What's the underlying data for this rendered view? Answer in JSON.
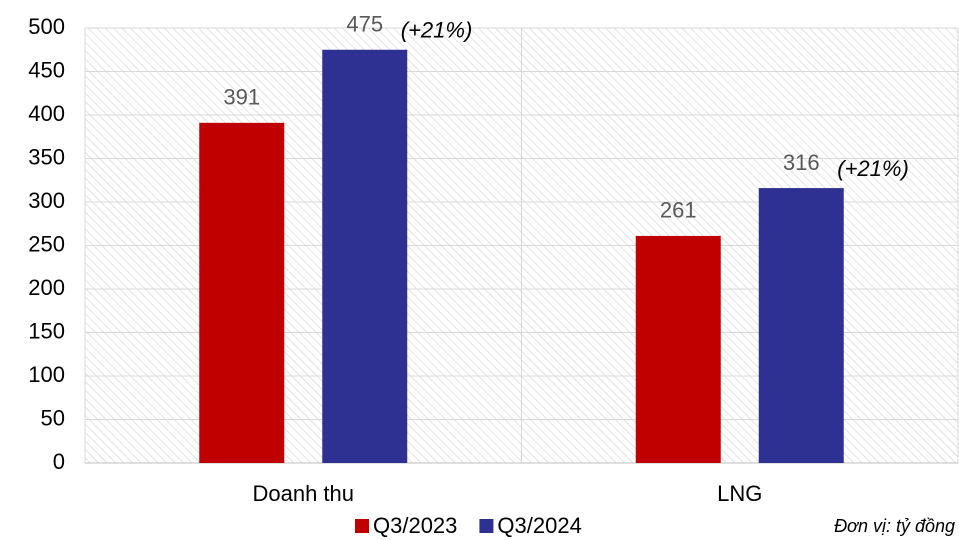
{
  "chart_data": {
    "type": "bar",
    "categories": [
      "Doanh thu",
      "LNG"
    ],
    "series": [
      {
        "name": "Q3/2023",
        "color": "#c00000",
        "values": [
          391,
          261
        ]
      },
      {
        "name": "Q3/2024",
        "color": "#2e3192",
        "values": [
          475,
          316
        ]
      }
    ],
    "annotations": [
      "(+21%)",
      "(+21%)"
    ],
    "note": "Đơn vị: tỷ đồng",
    "ylim": [
      0,
      500
    ],
    "yticks": [
      0,
      50,
      100,
      150,
      200,
      250,
      300,
      350,
      400,
      450,
      500
    ],
    "grid": true,
    "legend": "bottom"
  }
}
